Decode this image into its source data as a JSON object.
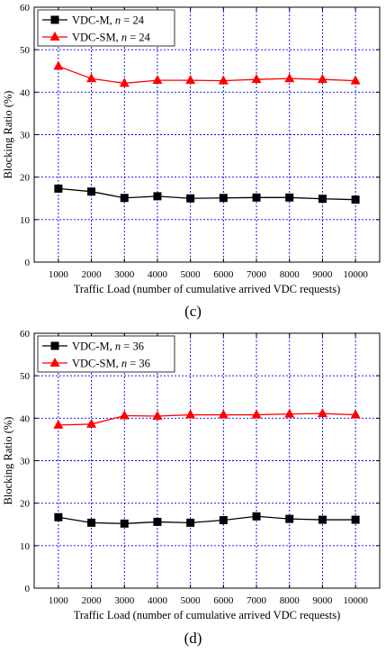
{
  "chart_data": [
    {
      "type": "line",
      "panel_label": "(c)",
      "xlabel": "Traffic Load (number of cumulative  arrived VDC requests)",
      "ylabel": "Blocking Ratio (%)",
      "x": [
        1000,
        2000,
        3000,
        4000,
        5000,
        6000,
        7000,
        8000,
        9000,
        10000
      ],
      "ylim": [
        0,
        60
      ],
      "yticks": [
        0,
        10,
        20,
        30,
        40,
        50,
        60
      ],
      "grid": true,
      "legend_position": "top-left",
      "series": [
        {
          "name": "VDC-M",
          "n_label": "n = 24",
          "color": "#000000",
          "marker": "square",
          "values": [
            17.3,
            16.6,
            15.1,
            15.5,
            15.0,
            15.1,
            15.2,
            15.2,
            14.9,
            14.7
          ]
        },
        {
          "name": "VDC-SM",
          "n_label": "n = 24",
          "color": "#ff0000",
          "marker": "triangle",
          "values": [
            46.1,
            43.2,
            42.1,
            42.8,
            42.8,
            42.7,
            43.0,
            43.2,
            43.0,
            42.7
          ]
        }
      ]
    },
    {
      "type": "line",
      "panel_label": "(d)",
      "xlabel": "Traffic Load (number of cumulative  arrived VDC requests)",
      "ylabel": "Blocking Ratio (%)",
      "x": [
        1000,
        2000,
        3000,
        4000,
        5000,
        6000,
        7000,
        8000,
        9000,
        10000
      ],
      "ylim": [
        0,
        60
      ],
      "yticks": [
        0,
        10,
        20,
        30,
        40,
        50,
        60
      ],
      "grid": true,
      "legend_position": "top-left",
      "series": [
        {
          "name": "VDC-M",
          "n_label": "n = 36",
          "color": "#000000",
          "marker": "square",
          "values": [
            16.7,
            15.4,
            15.2,
            15.6,
            15.4,
            16.0,
            16.9,
            16.3,
            16.1,
            16.1
          ]
        },
        {
          "name": "VDC-SM",
          "n_label": "n = 36",
          "color": "#ff0000",
          "marker": "triangle",
          "values": [
            38.4,
            38.6,
            40.6,
            40.5,
            40.8,
            40.8,
            40.8,
            41.0,
            41.1,
            40.8
          ]
        }
      ]
    }
  ]
}
